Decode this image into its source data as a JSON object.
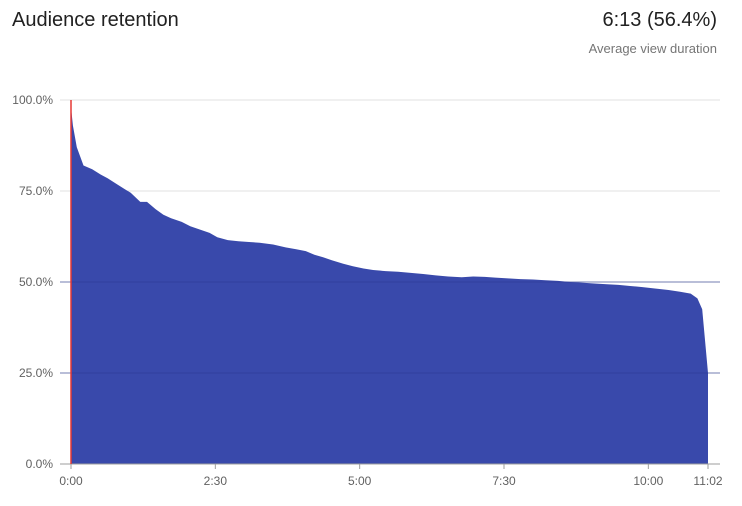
{
  "header": {
    "title": "Audience retention",
    "avg_value": "6:13 (56.4%)",
    "avg_label": "Average view duration"
  },
  "colors": {
    "area_fill": "#3949ab",
    "gridline": "#e0e0e0",
    "axis_line": "#9e9e9e",
    "playhead": "#e53935"
  },
  "chart_data": {
    "type": "area",
    "title": "Audience retention",
    "xlabel": "",
    "ylabel": "",
    "x_unit": "seconds",
    "xlim": [
      0,
      662
    ],
    "ylim": [
      0,
      100
    ],
    "grid": true,
    "legend": "none",
    "y_ticks": [
      {
        "value": 100,
        "label": "100.0%"
      },
      {
        "value": 75,
        "label": "75.0%"
      },
      {
        "value": 50,
        "label": "50.0%"
      },
      {
        "value": 25,
        "label": "25.0%"
      },
      {
        "value": 0,
        "label": "0.0%"
      }
    ],
    "x_ticks": [
      {
        "value": 0,
        "label": "0:00"
      },
      {
        "value": 150,
        "label": "2:30"
      },
      {
        "value": 300,
        "label": "5:00"
      },
      {
        "value": 450,
        "label": "7:30"
      },
      {
        "value": 600,
        "label": "10:00"
      },
      {
        "value": 662,
        "label": "11:02"
      }
    ],
    "playhead_x": 0,
    "series": [
      {
        "x": [
          0,
          2,
          6,
          13,
          22,
          31,
          38,
          47,
          56,
          62,
          72,
          79,
          88,
          96,
          104,
          115,
          124,
          133,
          144,
          152,
          163,
          174,
          185,
          196,
          210,
          223,
          234,
          244,
          253,
          262,
          271,
          283,
          293,
          304,
          314,
          327,
          340,
          353,
          366,
          379,
          392,
          406,
          418,
          430,
          441,
          454,
          467,
          480,
          493,
          506,
          519,
          532,
          544,
          557,
          569,
          581,
          594,
          608,
          621,
          633,
          644,
          651,
          656,
          662
        ],
        "y": [
          98,
          93,
          87,
          82,
          81,
          79.5,
          78.5,
          77,
          75.5,
          74.5,
          72,
          72,
          70,
          68.5,
          67.5,
          66.5,
          65.3,
          64.5,
          63.5,
          62.3,
          61.5,
          61.2,
          61,
          60.8,
          60.3,
          59.5,
          59,
          58.5,
          57.5,
          56.8,
          56,
          55,
          54.3,
          53.7,
          53.3,
          53,
          52.8,
          52.5,
          52.2,
          51.8,
          51.5,
          51.3,
          51.5,
          51.4,
          51.2,
          51,
          50.8,
          50.7,
          50.5,
          50.3,
          50,
          49.8,
          49.6,
          49.4,
          49.2,
          48.9,
          48.6,
          48.2,
          47.8,
          47.3,
          46.8,
          45.5,
          42.5,
          25
        ]
      }
    ]
  }
}
